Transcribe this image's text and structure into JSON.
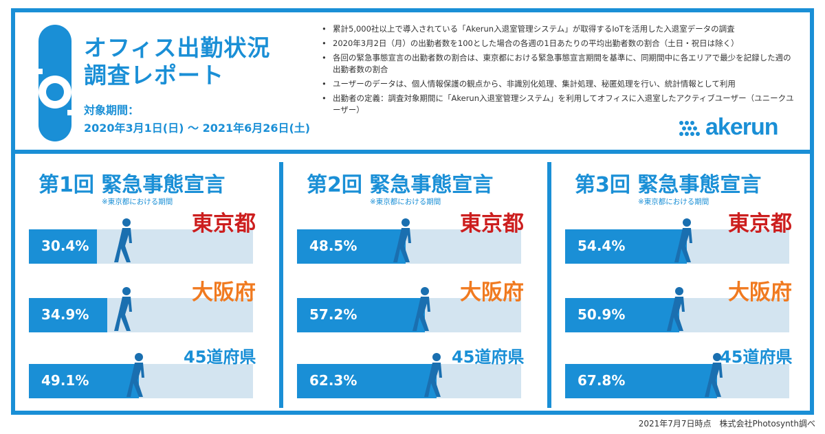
{
  "header": {
    "title_line1": "オフィス出勤状況",
    "title_line2": "調査レポート",
    "period_label": "対象期間：",
    "period_value": "2020年3月1日(日) 〜 2021年6月26日(土)",
    "notes": [
      "累計5,000社以上で導入されている「Akerun入退室管理システム」が取得するIoTを活用した入退室データの調査",
      "2020年3月2日（月）の出勤者数を100とした場合の各週の1日あたりの平均出勤者数の割合（土日・祝日は除く）",
      "各回の緊急事態宣言の出勤者数の割合は、東京都における緊急事態宣言期間を基準に、同期間中に各エリアで最少を記録した週の出勤者数の割合",
      "ユーザーのデータは、個人情報保護の観点から、非識別化処理、集計処理、秘匿処理を行い、統計情報として利用",
      "出勤者の定義：調査対象期間に「Akerun入退室管理システム」を利用してオフィスに入退室したアクティブユーザー（ユニークユーザー）"
    ],
    "brand": "akerun"
  },
  "colors": {
    "accent": "#1a8fd6",
    "bar_bg": "#d3e4f0",
    "tokyo": "#cc1e1e",
    "osaka": "#f07a20"
  },
  "chart_data": [
    {
      "type": "bar",
      "title": "第1回 緊急事態宣言",
      "subtitle": "※東京都における期間",
      "categories": [
        "東京都",
        "大阪府",
        "45道府県"
      ],
      "values": [
        30.4,
        34.9,
        49.1
      ],
      "labels": [
        "30.4%",
        "34.9%",
        "49.1%"
      ],
      "ylim": [
        0,
        100
      ]
    },
    {
      "type": "bar",
      "title": "第2回 緊急事態宣言",
      "subtitle": "※東京都における期間",
      "categories": [
        "東京都",
        "大阪府",
        "45道府県"
      ],
      "values": [
        48.5,
        57.2,
        62.3
      ],
      "labels": [
        "48.5%",
        "57.2%",
        "62.3%"
      ],
      "ylim": [
        0,
        100
      ]
    },
    {
      "type": "bar",
      "title": "第3回 緊急事態宣言",
      "subtitle": "※東京都における期間",
      "categories": [
        "東京都",
        "大阪府",
        "45道府県"
      ],
      "values": [
        54.4,
        50.9,
        67.8
      ],
      "labels": [
        "54.4%",
        "50.9%",
        "67.8%"
      ],
      "ylim": [
        0,
        100
      ]
    }
  ],
  "footer": "2021年7月7日時点　株式会社Photosynth調べ"
}
